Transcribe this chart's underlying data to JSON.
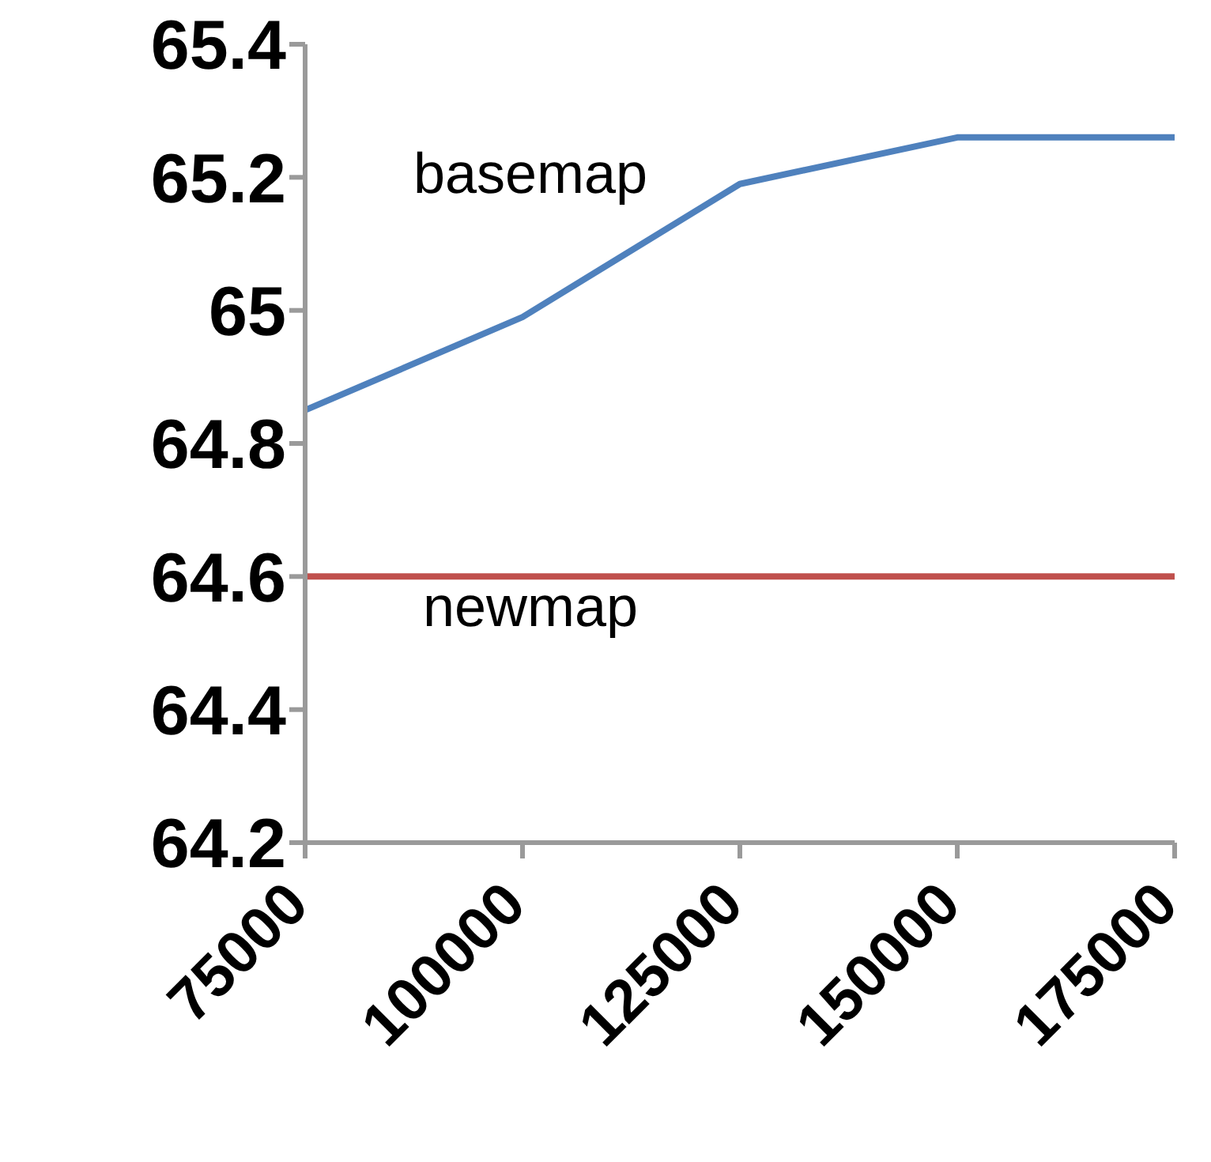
{
  "chart_data": {
    "type": "line",
    "categories": [
      "75000",
      "100000",
      "125000",
      "150000",
      "175000"
    ],
    "series": [
      {
        "name": "basemap",
        "color": "#4f81bd",
        "values": [
          64.85,
          64.99,
          65.19,
          65.26,
          65.26
        ]
      },
      {
        "name": "newmap",
        "color": "#c0504d",
        "values": [
          64.6,
          64.6,
          64.6,
          64.6,
          64.6
        ]
      }
    ],
    "ylim": [
      64.2,
      65.4
    ],
    "yticks": [
      64.2,
      64.4,
      64.6,
      64.8,
      65,
      65.2,
      65.4
    ],
    "grid": false,
    "legend": false,
    "marker": "none",
    "line_style": "solid"
  }
}
